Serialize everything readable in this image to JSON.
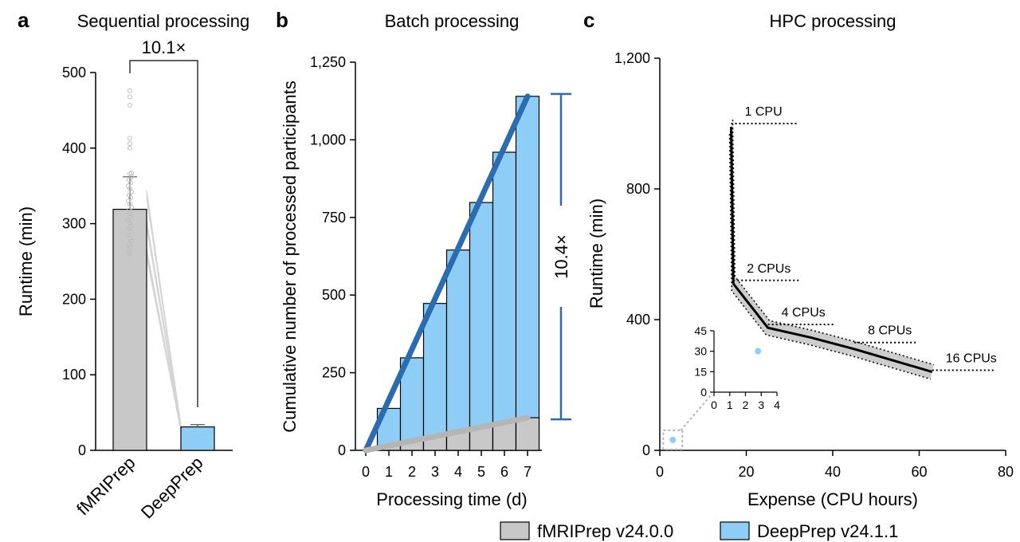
{
  "colors": {
    "fmriprep": "#c8c8c8",
    "deepprep": "#8ecdf5",
    "deepprep_line": "#2b6cb0",
    "fmriprep_line": "#b5b5b5",
    "inset_point": "#8ecdf5"
  },
  "legend": {
    "placement": "bottom-right",
    "items": [
      {
        "label": "fMRIPrep v24.0.0",
        "color": "#c8c8c8"
      },
      {
        "label": "DeepPrep v24.1.1",
        "color": "#8ecdf5"
      }
    ]
  },
  "chart_data": [
    {
      "panel": "a",
      "type": "bar",
      "title": "Sequential processing",
      "xlabel": "",
      "ylabel": "Runtime (min)",
      "ylim": [
        0,
        500
      ],
      "yticks": [
        "0",
        "100",
        "200",
        "300",
        "400",
        "500"
      ],
      "categories": [
        "fMRIPrep",
        "DeepPrep"
      ],
      "values": [
        319,
        31
      ],
      "error": [
        43,
        3
      ],
      "annotation": "10.1×",
      "paired_lines": true,
      "outliers": [
        476,
        468,
        457,
        413,
        406,
        400
      ]
    },
    {
      "panel": "b",
      "type": "bar",
      "title": "Batch processing",
      "xlabel": "Processing time (d)",
      "ylabel": "Cumulative number of processed participants",
      "ylim": [
        0,
        1250
      ],
      "xticks": [
        "0",
        "1",
        "2",
        "3",
        "4",
        "5",
        "6",
        "7"
      ],
      "yticks": [
        "0",
        "250",
        "500",
        "750",
        "1,000",
        "1,250"
      ],
      "categories": [
        1,
        2,
        3,
        4,
        5,
        6,
        7
      ],
      "series": [
        {
          "name": "DeepPrep v24.1.1",
          "values": [
            135,
            298,
            473,
            645,
            798,
            960,
            1140
          ]
        },
        {
          "name": "fMRIPrep v24.0.0",
          "values": [
            15,
            30,
            45,
            60,
            75,
            90,
            105
          ]
        }
      ],
      "annotation": "10.4×"
    },
    {
      "panel": "c",
      "type": "line",
      "title": "HPC processing",
      "xlabel": "Expense (CPU hours)",
      "ylabel": "Runtime (min)",
      "xlim": [
        0,
        80
      ],
      "ylim": [
        0,
        1200
      ],
      "xticks": [
        "0",
        "20",
        "40",
        "60",
        "80"
      ],
      "yticks": [
        "0",
        "400",
        "800",
        "1,200"
      ],
      "series": [
        {
          "name": "fMRIPrep v24.0.0",
          "x": [
            16.5,
            17,
            25,
            35,
            45,
            63
          ],
          "y": [
            990,
            510,
            375,
            345,
            310,
            240
          ]
        }
      ],
      "points": [
        {
          "label": "1 CPU",
          "x": 16.5,
          "y": 1000
        },
        {
          "label": "2 CPUs",
          "x": 17,
          "y": 520
        },
        {
          "label": "4 CPUs",
          "x": 25,
          "y": 385
        },
        {
          "label": "8 CPUs",
          "x": 45,
          "y": 330
        },
        {
          "label": "16 CPUs",
          "x": 63,
          "y": 245
        }
      ],
      "deepprep_point": {
        "x": 3,
        "y": 32
      },
      "inset": {
        "xlim": [
          0,
          4
        ],
        "ylim": [
          0,
          45
        ],
        "xticks": [
          "0",
          "1",
          "2",
          "3",
          "4"
        ],
        "yticks": [
          "0",
          "15",
          "30",
          "45"
        ],
        "point": {
          "x": 2.8,
          "y": 30
        }
      }
    }
  ]
}
